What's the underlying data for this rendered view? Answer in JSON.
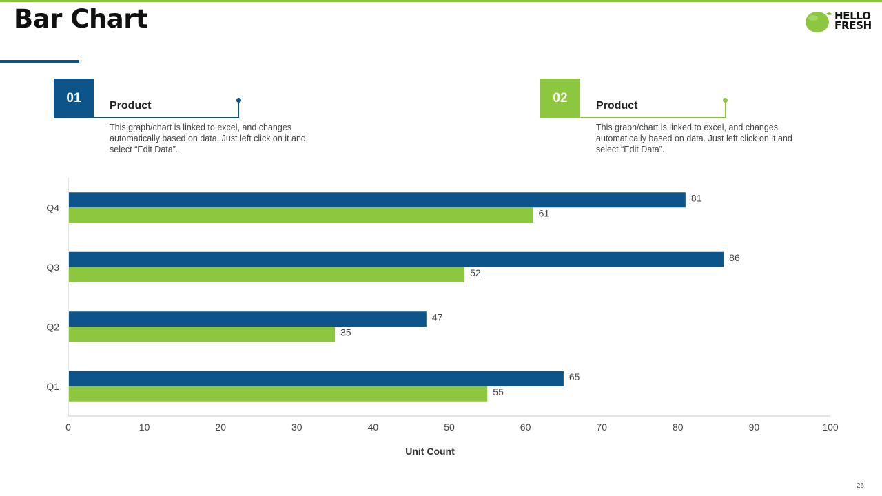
{
  "header": {
    "title": "Bar Chart",
    "logo_text": "HELLO\nFRESH"
  },
  "colors": {
    "accent_blue": "#0d548b",
    "accent_green": "#8dc63f",
    "top_rule": "#8dc63f"
  },
  "products": [
    {
      "number": "01",
      "title": "Product",
      "description": "This graph/chart is linked to excel, and changes automatically based on data. Just left click on it and select “Edit Data”.",
      "color": "#0d548b"
    },
    {
      "number": "02",
      "title": "Product",
      "description": "This graph/chart is linked to excel, and changes automatically based on data. Just left click on it and select “Edit Data”.",
      "color": "#8dc63f"
    }
  ],
  "chart_data": {
    "type": "bar",
    "orientation": "horizontal",
    "categories": [
      "Q1",
      "Q2",
      "Q3",
      "Q4"
    ],
    "series": [
      {
        "name": "Product 01",
        "color": "#0d548b",
        "values": [
          65,
          47,
          86,
          81
        ]
      },
      {
        "name": "Product 02",
        "color": "#8dc63f",
        "values": [
          55,
          35,
          52,
          61
        ]
      }
    ],
    "xlabel": "Unit Count",
    "ylabel": "",
    "xlim": [
      0,
      100
    ],
    "xticks": [
      0,
      10,
      20,
      30,
      40,
      50,
      60,
      70,
      80,
      90,
      100
    ],
    "grid": false,
    "data_labels": true
  },
  "footer": {
    "page_number": "26"
  }
}
